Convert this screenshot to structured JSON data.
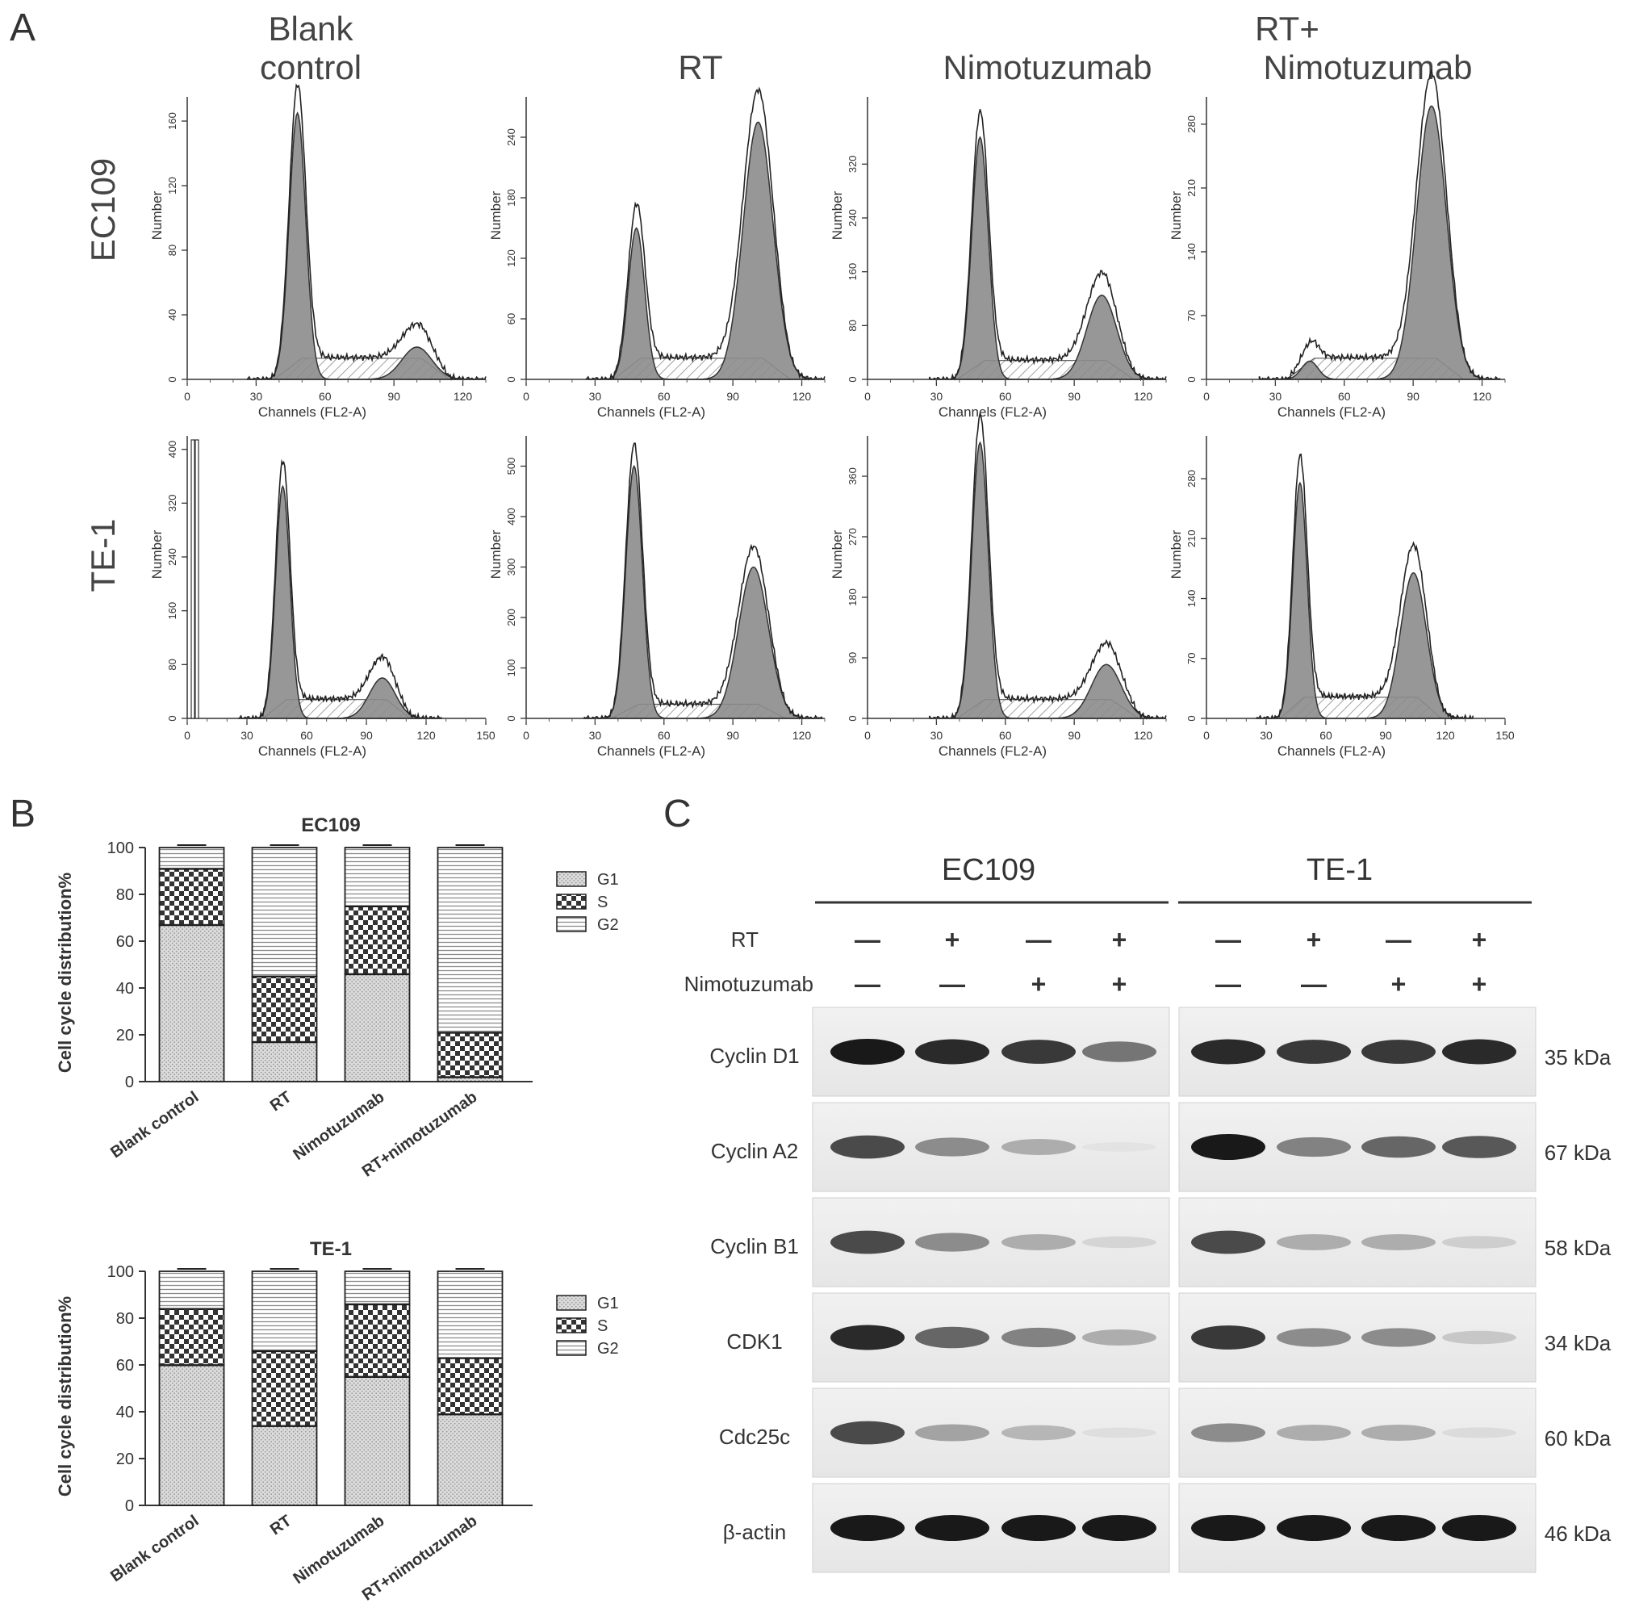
{
  "panel_labels": {
    "a": "A",
    "b": "B",
    "c": "C"
  },
  "panel_a": {
    "column_headers": [
      {
        "line1": "Blank",
        "line2": "control"
      },
      {
        "line1": "",
        "line2": "RT"
      },
      {
        "line1": "",
        "line2": "Nimotuzumab"
      },
      {
        "line1": "RT+",
        "line2": "Nimotuzumab"
      }
    ],
    "row_labels": [
      "EC109",
      "TE-1"
    ],
    "x_axis_label": "Channels (FL2-A)",
    "y_axis_label": "Number",
    "histograms": [
      {
        "row": 0,
        "col": 0,
        "x_ticks": [
          "0",
          "30",
          "60",
          "90",
          "120"
        ],
        "x_max": 130,
        "y_ticks": [
          "0",
          "40",
          "80",
          "120",
          "160"
        ],
        "y_max": 175,
        "g1_peak": 48,
        "g1_height": 165,
        "g2_peak": 100,
        "g2_height": 20
      },
      {
        "row": 0,
        "col": 1,
        "x_ticks": [
          "0",
          "30",
          "60",
          "90",
          "120"
        ],
        "x_max": 130,
        "y_ticks": [
          "0",
          "60",
          "120",
          "180",
          "240"
        ],
        "y_max": 280,
        "g1_peak": 48,
        "g1_height": 150,
        "g2_peak": 101,
        "g2_height": 255
      },
      {
        "row": 0,
        "col": 2,
        "x_ticks": [
          "0",
          "30",
          "60",
          "90",
          "120"
        ],
        "x_max": 130,
        "y_ticks": [
          "0",
          "80",
          "160",
          "240",
          "320"
        ],
        "y_max": 420,
        "g1_peak": 49,
        "g1_height": 360,
        "g2_peak": 102,
        "g2_height": 125
      },
      {
        "row": 0,
        "col": 3,
        "x_ticks": [
          "0",
          "30",
          "60",
          "90",
          "120"
        ],
        "x_max": 130,
        "y_ticks": [
          "0",
          "70",
          "140",
          "210",
          "280"
        ],
        "y_max": 310,
        "g1_peak": 45,
        "g1_height": 20,
        "g2_peak": 98,
        "g2_height": 300
      },
      {
        "row": 1,
        "col": 0,
        "x_ticks": [
          "0",
          "30",
          "60",
          "90",
          "120",
          "150"
        ],
        "x_max": 150,
        "y_ticks": [
          "0",
          "80",
          "160",
          "240",
          "320",
          "400"
        ],
        "y_max": 420,
        "g1_peak": 48,
        "g1_height": 345,
        "g2_peak": 98,
        "g2_height": 60
      },
      {
        "row": 1,
        "col": 1,
        "x_ticks": [
          "0",
          "30",
          "60",
          "90",
          "120"
        ],
        "x_max": 130,
        "y_ticks": [
          "0",
          "100",
          "200",
          "300",
          "400",
          "500"
        ],
        "y_max": 560,
        "g1_peak": 47,
        "g1_height": 500,
        "g2_peak": 99,
        "g2_height": 300
      },
      {
        "row": 1,
        "col": 2,
        "x_ticks": [
          "0",
          "30",
          "60",
          "90",
          "120"
        ],
        "x_max": 130,
        "y_ticks": [
          "0",
          "90",
          "180",
          "270",
          "360"
        ],
        "y_max": 420,
        "g1_peak": 49,
        "g1_height": 410,
        "g2_peak": 104,
        "g2_height": 80
      },
      {
        "row": 1,
        "col": 3,
        "x_ticks": [
          "0",
          "30",
          "60",
          "90",
          "120",
          "150"
        ],
        "x_max": 150,
        "y_ticks": [
          "0",
          "70",
          "140",
          "210",
          "280"
        ],
        "y_max": 330,
        "g1_peak": 47,
        "g1_height": 275,
        "g2_peak": 104,
        "g2_height": 170
      }
    ]
  },
  "chart_data": [
    {
      "type": "bar",
      "stacked": true,
      "title": "EC109",
      "ylabel": "Cell cycle distribution%",
      "xlabel": "",
      "ylim": [
        0,
        100
      ],
      "y_ticks": [
        "0",
        "20",
        "40",
        "60",
        "80",
        "100"
      ],
      "categories": [
        "Blank control",
        "RT",
        "Nimotuzumab",
        "RT+nimotuzumab"
      ],
      "legend_position": "right",
      "series": [
        {
          "name": "G1",
          "values": [
            67,
            17,
            46,
            2
          ]
        },
        {
          "name": "S",
          "values": [
            24,
            28,
            29,
            19
          ]
        },
        {
          "name": "G2",
          "values": [
            9,
            55,
            25,
            79
          ]
        }
      ]
    },
    {
      "type": "bar",
      "stacked": true,
      "title": "TE-1",
      "ylabel": "Cell cycle distribution%",
      "xlabel": "",
      "ylim": [
        0,
        100
      ],
      "y_ticks": [
        "0",
        "20",
        "40",
        "60",
        "80",
        "100"
      ],
      "categories": [
        "Blank control",
        "RT",
        "Nimotuzumab",
        "RT+nimotuzumab"
      ],
      "legend_position": "right",
      "series": [
        {
          "name": "G1",
          "values": [
            60,
            34,
            55,
            39
          ]
        },
        {
          "name": "S",
          "values": [
            24,
            32,
            31,
            24
          ]
        },
        {
          "name": "G2",
          "values": [
            16,
            34,
            14,
            37
          ]
        }
      ]
    }
  ],
  "panel_c": {
    "cell_lines": [
      "EC109",
      "TE-1"
    ],
    "conditions": [
      {
        "label": "RT",
        "values": [
          "—",
          "+",
          "—",
          "+"
        ]
      },
      {
        "label": "Nimotuzumab",
        "values": [
          "—",
          "—",
          "+",
          "+"
        ]
      }
    ],
    "proteins": [
      {
        "name": "Cyclin D1",
        "size": "35 kDa",
        "ec109": [
          1.0,
          0.95,
          0.9,
          0.7
        ],
        "te1": [
          0.95,
          0.9,
          0.9,
          0.95
        ]
      },
      {
        "name": "Cyclin A2",
        "size": "67 kDa",
        "ec109": [
          0.85,
          0.6,
          0.45,
          0.08
        ],
        "te1": [
          1.0,
          0.65,
          0.75,
          0.8
        ]
      },
      {
        "name": "Cyclin B1",
        "size": "58 kDa",
        "ec109": [
          0.85,
          0.6,
          0.45,
          0.2
        ],
        "te1": [
          0.85,
          0.45,
          0.45,
          0.25
        ]
      },
      {
        "name": "CDK1",
        "size": "34 kDa",
        "ec109": [
          0.95,
          0.75,
          0.65,
          0.45
        ],
        "te1": [
          0.9,
          0.6,
          0.6,
          0.3
        ]
      },
      {
        "name": "Cdc25c",
        "size": "60 kDa",
        "ec109": [
          0.85,
          0.5,
          0.4,
          0.12
        ],
        "te1": [
          0.6,
          0.45,
          0.45,
          0.15
        ]
      },
      {
        "name": "β-actin",
        "size": "46 kDa",
        "ec109": [
          1.0,
          1.0,
          1.0,
          1.0
        ],
        "te1": [
          1.0,
          1.0,
          1.0,
          1.0
        ]
      }
    ]
  }
}
